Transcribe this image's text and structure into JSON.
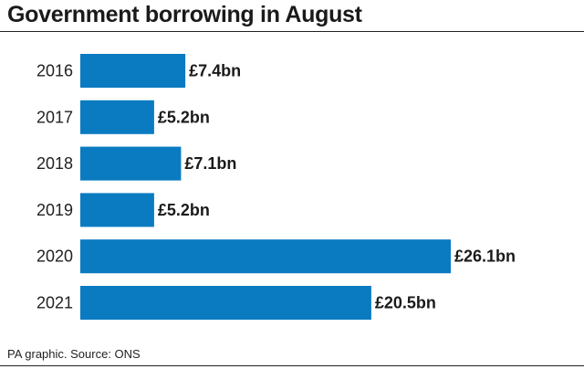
{
  "chart_data": {
    "type": "bar",
    "orientation": "horizontal",
    "title": "Government borrowing in August",
    "categories": [
      "2016",
      "2017",
      "2018",
      "2019",
      "2020",
      "2021"
    ],
    "values": [
      7.4,
      5.2,
      7.1,
      5.2,
      26.1,
      20.5
    ],
    "value_labels": [
      "£7.4bn",
      "£5.2bn",
      "£7.1bn",
      "£5.2bn",
      "£26.1bn",
      "£20.5bn"
    ],
    "bar_color": "#0a7bc1",
    "xlim": [
      0,
      26.1
    ],
    "grid": false
  },
  "footer": {
    "source": "PA graphic. Source: ONS"
  }
}
